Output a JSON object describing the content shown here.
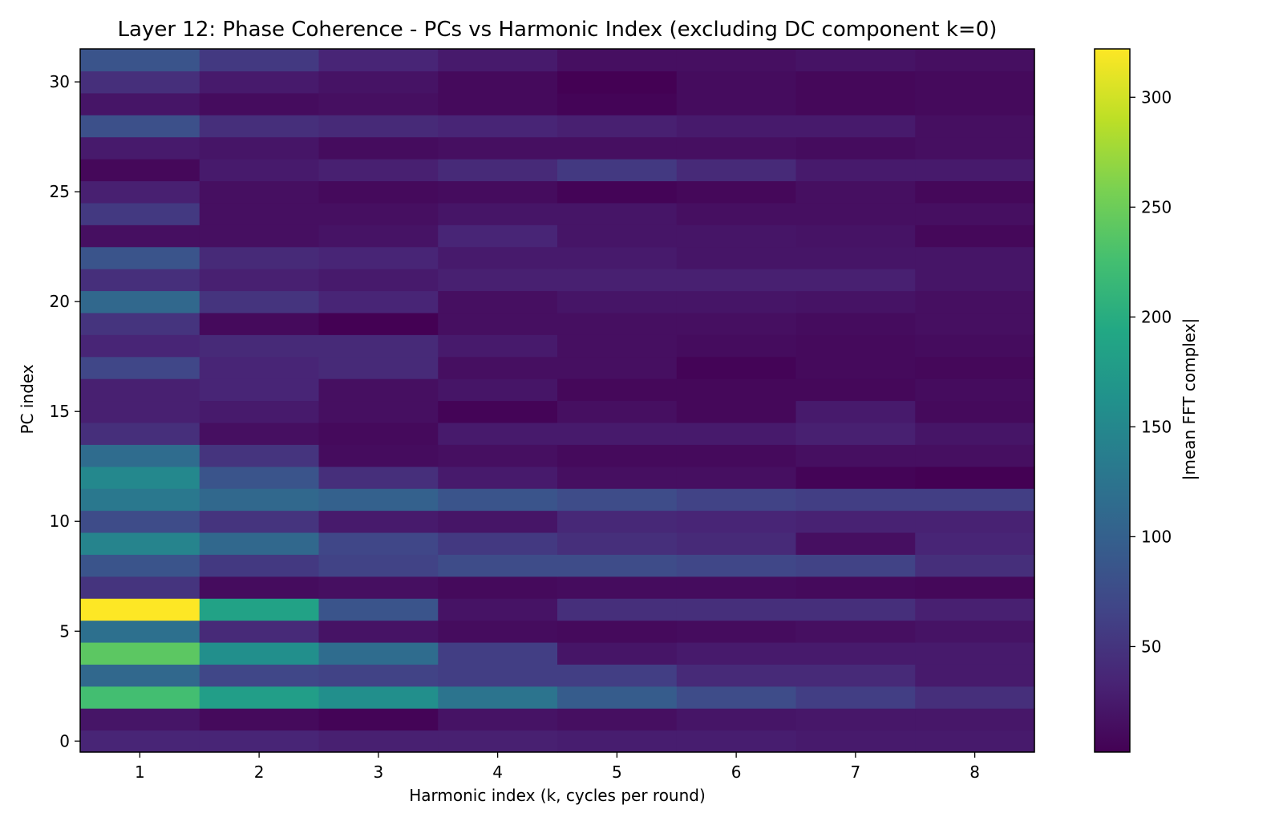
{
  "chart_data": {
    "type": "heatmap",
    "title": "Layer 12: Phase Coherence - PCs vs Harmonic Index (excluding DC component k=0)",
    "xlabel": "Harmonic index (k, cycles per round)",
    "ylabel": "PC index",
    "colorbar_label": "|mean FFT complex|",
    "colormap": "viridis",
    "x_categories": [
      1,
      2,
      3,
      4,
      5,
      6,
      7,
      8
    ],
    "y_categories": [
      0,
      1,
      2,
      3,
      4,
      5,
      6,
      7,
      8,
      9,
      10,
      11,
      12,
      13,
      14,
      15,
      16,
      17,
      18,
      19,
      20,
      21,
      22,
      23,
      24,
      25,
      26,
      27,
      28,
      29,
      30,
      31
    ],
    "x_ticks": [
      "1",
      "2",
      "3",
      "4",
      "5",
      "6",
      "7",
      "8"
    ],
    "y_ticks": [
      "0",
      "5",
      "10",
      "15",
      "20",
      "25",
      "30"
    ],
    "colorbar_ticks": [
      "50",
      "100",
      "150",
      "200",
      "250",
      "300"
    ],
    "vmin": 2,
    "vmax": 322,
    "values": [
      [
        35,
        35,
        30,
        30,
        28,
        28,
        25,
        25
      ],
      [
        20,
        10,
        5,
        18,
        15,
        20,
        22,
        22
      ],
      [
        225,
        180,
        160,
        125,
        95,
        75,
        60,
        45
      ],
      [
        110,
        70,
        65,
        60,
        60,
        40,
        40,
        25
      ],
      [
        240,
        160,
        115,
        60,
        20,
        25,
        25,
        25
      ],
      [
        120,
        40,
        18,
        12,
        10,
        12,
        15,
        18
      ],
      [
        322,
        185,
        85,
        18,
        45,
        45,
        45,
        30
      ],
      [
        50,
        12,
        15,
        10,
        12,
        12,
        10,
        8
      ],
      [
        85,
        55,
        65,
        75,
        75,
        70,
        65,
        45
      ],
      [
        145,
        110,
        70,
        55,
        45,
        40,
        15,
        35
      ],
      [
        75,
        50,
        25,
        20,
        38,
        35,
        32,
        32
      ],
      [
        130,
        110,
        100,
        85,
        75,
        65,
        60,
        60
      ],
      [
        150,
        85,
        45,
        25,
        15,
        15,
        5,
        2
      ],
      [
        115,
        50,
        12,
        15,
        10,
        10,
        15,
        15
      ],
      [
        45,
        15,
        10,
        25,
        25,
        25,
        30,
        20
      ],
      [
        30,
        25,
        15,
        5,
        15,
        8,
        25,
        10
      ],
      [
        30,
        35,
        15,
        20,
        8,
        8,
        8,
        12
      ],
      [
        70,
        35,
        40,
        15,
        15,
        5,
        10,
        8
      ],
      [
        35,
        40,
        40,
        25,
        15,
        12,
        10,
        12
      ],
      [
        50,
        10,
        2,
        15,
        15,
        15,
        12,
        15
      ],
      [
        110,
        50,
        35,
        15,
        20,
        20,
        18,
        15
      ],
      [
        45,
        30,
        25,
        30,
        30,
        30,
        30,
        20
      ],
      [
        85,
        40,
        35,
        25,
        25,
        20,
        20,
        20
      ],
      [
        15,
        15,
        18,
        35,
        20,
        20,
        18,
        8
      ],
      [
        55,
        15,
        15,
        20,
        20,
        15,
        15,
        15
      ],
      [
        30,
        15,
        10,
        12,
        5,
        8,
        15,
        8
      ],
      [
        8,
        25,
        30,
        40,
        55,
        40,
        25,
        25
      ],
      [
        25,
        20,
        12,
        15,
        15,
        15,
        12,
        15
      ],
      [
        80,
        45,
        40,
        35,
        30,
        25,
        25,
        15
      ],
      [
        20,
        12,
        15,
        10,
        5,
        12,
        8,
        10
      ],
      [
        45,
        25,
        18,
        10,
        2,
        12,
        8,
        10
      ],
      [
        85,
        55,
        35,
        25,
        15,
        15,
        18,
        15
      ]
    ]
  }
}
